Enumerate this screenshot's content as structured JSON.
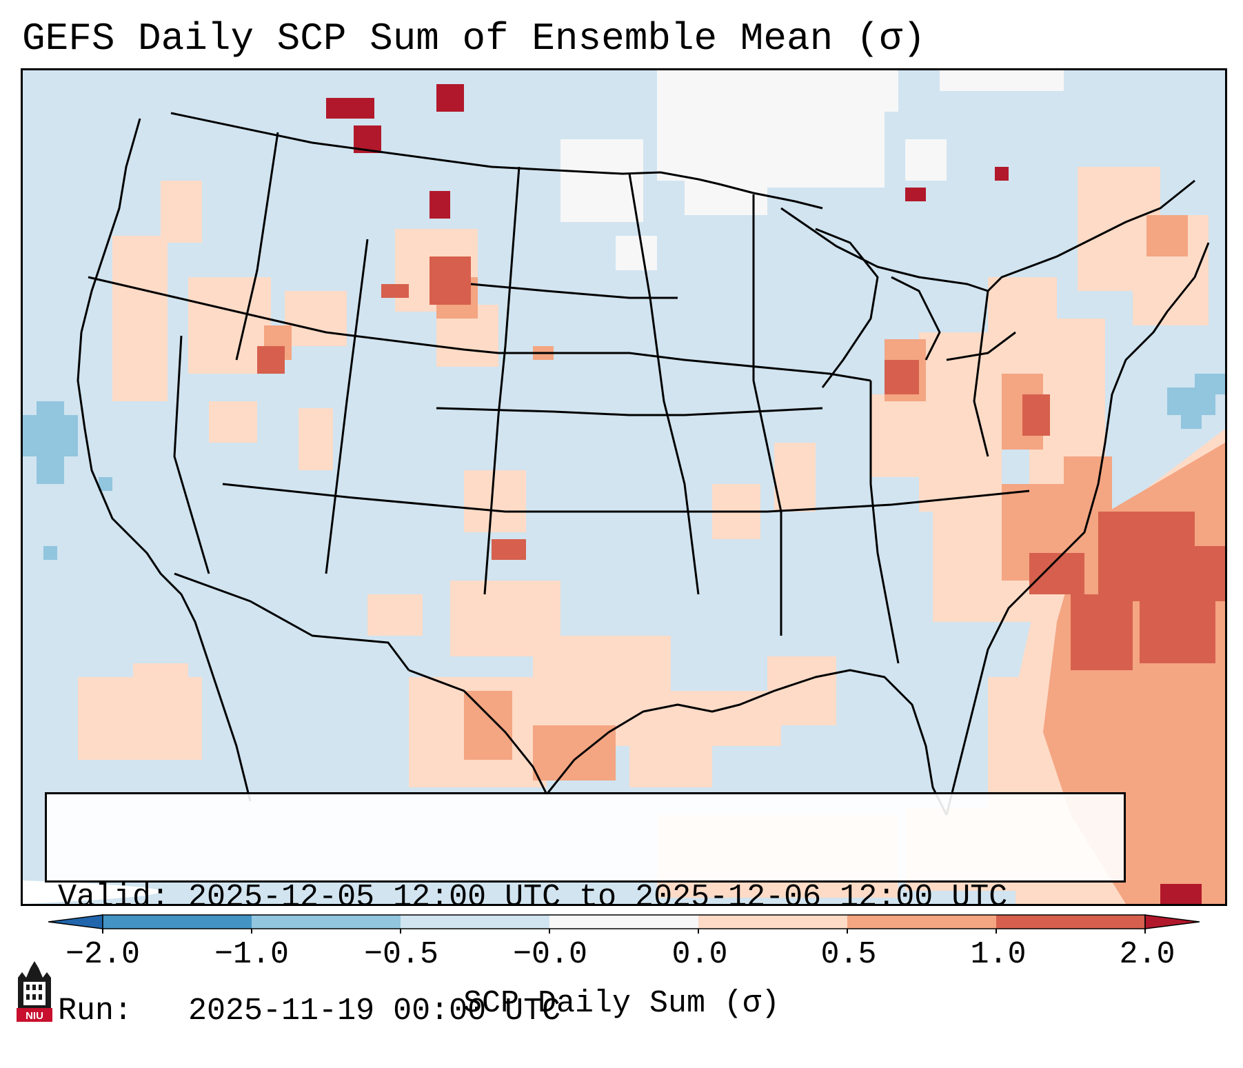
{
  "title": "GEFS Daily SCP Sum of Ensemble Mean (σ)",
  "info": {
    "valid_line": "Valid: 2025-12-05 12:00 UTC to 2025-12-06 12:00 UTC",
    "run_line": "Run:   2025-11-19 00:00 UTC"
  },
  "colorbar": {
    "label": "SCP Daily Sum (σ)",
    "ticks": [
      "−2.0",
      "−1.0",
      "−0.5",
      "−0.0",
      "0.0",
      "0.5",
      "1.0",
      "2.0"
    ],
    "bins": [
      {
        "range": "< -2.0",
        "color": "#2166ac"
      },
      {
        "range": "-2.0 to -1.0",
        "color": "#4393c3"
      },
      {
        "range": "-1.0 to -0.5",
        "color": "#92c5de"
      },
      {
        "range": "-0.5 to -0.0",
        "color": "#d1e5f0"
      },
      {
        "range": "-0.0 to 0.0",
        "color": "#f7f7f7"
      },
      {
        "range": "0.0 to 0.5",
        "color": "#fddbc7"
      },
      {
        "range": "0.5 to 1.0",
        "color": "#f4a582"
      },
      {
        "range": "1.0 to 2.0",
        "color": "#d6604d"
      },
      {
        "range": "> 2.0",
        "color": "#b2182b"
      }
    ]
  },
  "logo": {
    "text": "NIU"
  },
  "colors": {
    "background_field": "#d1e4f0",
    "boundary": "#000000"
  }
}
